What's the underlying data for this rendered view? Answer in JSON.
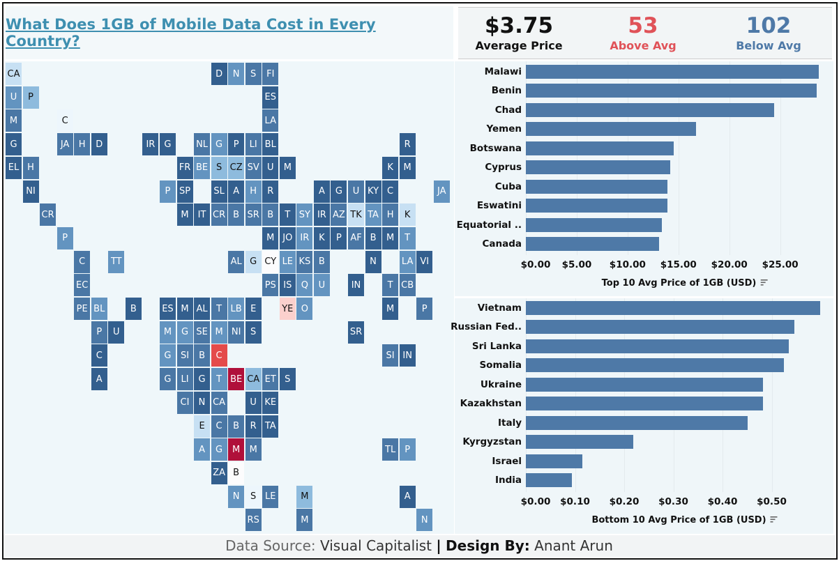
{
  "header": {
    "title": "What Does 1GB of Mobile Data Cost in Every Country?"
  },
  "kpis": {
    "average": {
      "value": "$3.75",
      "label": "Average Price",
      "color": "#111111"
    },
    "above": {
      "value": "53",
      "label": "Above Avg",
      "color": "#e05258"
    },
    "below": {
      "value": "102",
      "label": "Below Avg",
      "color": "#4e79a7"
    }
  },
  "colors": {
    "bar": "#4e79a7",
    "dark": "#335f8e",
    "mid": "#4a77a5",
    "midlight": "#6394c0",
    "light": "#8ebbdd",
    "verylight": "#c7e0f3",
    "nearwhite": "#edf6fc",
    "white": "#fcfcfd",
    "pink": "#fbd0cd",
    "red": "#e44b4a",
    "crimson": "#b0103a"
  },
  "map": {
    "tiles": [
      [
        "CA",
        "verylight"
      ],
      [
        "D",
        "dark"
      ],
      [
        "N",
        "midlight"
      ],
      [
        "S",
        "mid"
      ],
      [
        "FI",
        "mid"
      ],
      [
        "U",
        "midlight"
      ],
      [
        "P",
        "light"
      ],
      [
        "ES",
        "dark"
      ],
      [
        "M",
        "mid"
      ],
      [
        "C",
        "nearwhite"
      ],
      [
        "LA",
        "mid"
      ],
      [
        "G",
        "dark"
      ],
      [
        "JA",
        "mid"
      ],
      [
        "H",
        "mid"
      ],
      [
        "D",
        "dark"
      ],
      [
        "IR",
        "dark"
      ],
      [
        "G",
        "dark"
      ],
      [
        "NL",
        "mid"
      ],
      [
        "G",
        "midlight"
      ],
      [
        "P",
        "dark"
      ],
      [
        "LI",
        "mid"
      ],
      [
        "BL",
        "dark"
      ],
      [
        "R",
        "dark"
      ],
      [
        "EL",
        "dark"
      ],
      [
        "H",
        "mid"
      ],
      [
        "FR",
        "dark"
      ],
      [
        "BE",
        "midlight"
      ],
      [
        "S",
        "light"
      ],
      [
        "CZ",
        "light"
      ],
      [
        "SV",
        "mid"
      ],
      [
        "U",
        "dark"
      ],
      [
        "M",
        "dark"
      ],
      [
        "K",
        "dark"
      ],
      [
        "M",
        "dark"
      ],
      [
        "NI",
        "dark"
      ],
      [
        "P",
        "midlight"
      ],
      [
        "SP",
        "dark"
      ],
      [
        "SL",
        "dark"
      ],
      [
        "A",
        "dark"
      ],
      [
        "H",
        "midlight"
      ],
      [
        "R",
        "dark"
      ],
      [
        "A",
        "dark"
      ],
      [
        "G",
        "dark"
      ],
      [
        "U",
        "mid"
      ],
      [
        "KY",
        "dark"
      ],
      [
        "C",
        "dark"
      ],
      [
        "JA",
        "midlight"
      ],
      [
        "CR",
        "mid"
      ],
      [
        "M",
        "dark"
      ],
      [
        "IT",
        "dark"
      ],
      [
        "CR",
        "mid"
      ],
      [
        "B",
        "mid"
      ],
      [
        "SR",
        "mid"
      ],
      [
        "B",
        "mid"
      ],
      [
        "T",
        "dark"
      ],
      [
        "SY",
        "midlight"
      ],
      [
        "IR",
        "dark"
      ],
      [
        "AZ",
        "mid"
      ],
      [
        "TK",
        "verylight"
      ],
      [
        "TA",
        "midlight"
      ],
      [
        "H",
        "mid"
      ],
      [
        "K",
        "verylight"
      ],
      [
        "P",
        "midlight"
      ],
      [
        "M",
        "dark"
      ],
      [
        "JO",
        "dark"
      ],
      [
        "IR",
        "midlight"
      ],
      [
        "K",
        "dark"
      ],
      [
        "P",
        "dark"
      ],
      [
        "AF",
        "mid"
      ],
      [
        "B",
        "dark"
      ],
      [
        "M",
        "dark"
      ],
      [
        "T",
        "midlight"
      ],
      [
        "C",
        "mid"
      ],
      [
        "TT",
        "midlight"
      ],
      [
        "AL",
        "mid"
      ],
      [
        "G",
        "verylight"
      ],
      [
        "CY",
        "white"
      ],
      [
        "LE",
        "midlight"
      ],
      [
        "KS",
        "mid"
      ],
      [
        "B",
        "mid"
      ],
      [
        "N",
        "dark"
      ],
      [
        "LA",
        "midlight"
      ],
      [
        "VI",
        "dark"
      ],
      [
        "EC",
        "mid"
      ],
      [
        "PS",
        "mid"
      ],
      [
        "IS",
        "dark"
      ],
      [
        "Q",
        "midlight"
      ],
      [
        "U",
        "midlight"
      ],
      [
        "IN",
        "dark"
      ],
      [
        "T",
        "mid"
      ],
      [
        "CB",
        "mid"
      ],
      [
        "PE",
        "mid"
      ],
      [
        "BL",
        "midlight"
      ],
      [
        "B",
        "dark"
      ],
      [
        "ES",
        "dark"
      ],
      [
        "M",
        "dark"
      ],
      [
        "AL",
        "dark"
      ],
      [
        "T",
        "mid"
      ],
      [
        "LB",
        "midlight"
      ],
      [
        "E",
        "dark"
      ],
      [
        "YE",
        "pink"
      ],
      [
        "O",
        "midlight"
      ],
      [
        "M",
        "dark"
      ],
      [
        "P",
        "mid"
      ],
      [
        "P",
        "mid"
      ],
      [
        "U",
        "dark"
      ],
      [
        "M",
        "midlight"
      ],
      [
        "G",
        "midlight"
      ],
      [
        "SE",
        "mid"
      ],
      [
        "M",
        "midlight"
      ],
      [
        "NI",
        "mid"
      ],
      [
        "S",
        "dark"
      ],
      [
        "SR",
        "dark"
      ],
      [
        "C",
        "dark"
      ],
      [
        "G",
        "midlight"
      ],
      [
        "SI",
        "mid"
      ],
      [
        "B",
        "mid"
      ],
      [
        "C",
        "red"
      ],
      [
        "SI",
        "mid"
      ],
      [
        "IN",
        "dark"
      ],
      [
        "A",
        "dark"
      ],
      [
        "G",
        "mid"
      ],
      [
        "LI",
        "mid"
      ],
      [
        "G",
        "dark"
      ],
      [
        "T",
        "midlight"
      ],
      [
        "BE",
        "crimson"
      ],
      [
        "CA",
        "light"
      ],
      [
        "ET",
        "mid"
      ],
      [
        "S",
        "dark"
      ],
      [
        "CI",
        "mid"
      ],
      [
        "N",
        "dark"
      ],
      [
        "CA",
        "mid"
      ],
      [
        "U",
        "dark"
      ],
      [
        "KE",
        "dark"
      ],
      [
        "E",
        "verylight"
      ],
      [
        "C",
        "mid"
      ],
      [
        "B",
        "mid"
      ],
      [
        "R",
        "dark"
      ],
      [
        "TA",
        "dark"
      ],
      [
        "A",
        "midlight"
      ],
      [
        "G",
        "midlight"
      ],
      [
        "M",
        "crimson"
      ],
      [
        "M",
        "mid"
      ],
      [
        "TL",
        "mid"
      ],
      [
        "P",
        "midlight"
      ],
      [
        "ZA",
        "dark"
      ],
      [
        "B",
        "white"
      ],
      [
        "N",
        "midlight"
      ],
      [
        "S",
        "nearwhite"
      ],
      [
        "LE",
        "mid"
      ],
      [
        "M",
        "light"
      ],
      [
        "A",
        "dark"
      ],
      [
        "RS",
        "mid"
      ],
      [
        "M",
        "mid"
      ],
      [
        "N",
        "midlight"
      ]
    ]
  },
  "chart_data": [
    {
      "type": "bar",
      "orientation": "horizontal",
      "title": "Top 10 Avg Price of 1GB (USD)",
      "categories": [
        "Malawi",
        "Benin",
        "Chad",
        "Yemen",
        "Botswana",
        "Cyprus",
        "Cuba",
        "Eswatini",
        "Equatorial ..",
        "Canada"
      ],
      "values": [
        28.8,
        28.6,
        24.4,
        16.7,
        14.5,
        14.2,
        13.9,
        13.9,
        13.4,
        13.1
      ],
      "ticks": [
        0,
        5,
        10,
        15,
        20,
        25
      ],
      "tick_labels": [
        "$0.00",
        "$5.00",
        "$10.00",
        "$15.00",
        "$20.00",
        "$25.00"
      ],
      "xlim": [
        0,
        29
      ],
      "grid": true,
      "sort_icon": "sort-descending-icon"
    },
    {
      "type": "bar",
      "orientation": "horizontal",
      "title": "Bottom 10 Avg Price of 1GB (USD)",
      "categories": [
        "Vietnam",
        "Russian Fed..",
        "Sri Lanka",
        "Somalia",
        "Ukraine",
        "Kazakhstan",
        "Italy",
        "Kyrgyzstan",
        "Israel",
        "India"
      ],
      "values": [
        0.598,
        0.546,
        0.535,
        0.525,
        0.482,
        0.482,
        0.451,
        0.219,
        0.115,
        0.093
      ],
      "ticks": [
        0,
        0.1,
        0.2,
        0.3,
        0.4,
        0.5
      ],
      "tick_labels": [
        "$0.00",
        "$0.10",
        "$0.20",
        "$0.30",
        "$0.40",
        "$0.50"
      ],
      "xlim": [
        0,
        0.6
      ],
      "grid": true,
      "sort_icon": "sort-descending-icon"
    }
  ],
  "footer": {
    "source_label": "Data Source:",
    "source": "Visual Capitalist",
    "separator": "|",
    "design_label": "Design By:",
    "designer": "Anant Arun"
  }
}
